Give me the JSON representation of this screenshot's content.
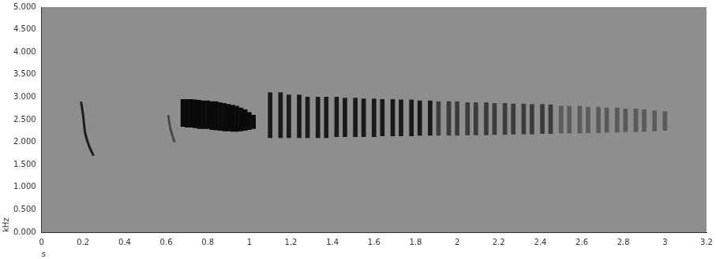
{
  "chart_data": {
    "type": "spectrogram",
    "x_label": "s",
    "y_label": "kHz",
    "xlim": [
      0,
      3.2
    ],
    "xticks": [
      0,
      0.2,
      0.4,
      0.6,
      0.8,
      1,
      1.2,
      1.4,
      1.6,
      1.8,
      2,
      2.2,
      2.4,
      2.6,
      2.8,
      3,
      3.2
    ],
    "ylim": [
      0,
      5
    ],
    "yticks": [
      {
        "value": 0,
        "label": "0.000"
      },
      {
        "value": 0.5,
        "label": "0.500"
      },
      {
        "value": 1,
        "label": "1.000"
      },
      {
        "value": 1.5,
        "label": "1.500"
      },
      {
        "value": 2,
        "label": "2.000"
      },
      {
        "value": 2.5,
        "label": "2.500"
      },
      {
        "value": 3,
        "label": "3.000"
      },
      {
        "value": 3.5,
        "label": "3.500"
      },
      {
        "value": 4,
        "label": "4.000"
      },
      {
        "value": 4.5,
        "label": "4.500"
      },
      {
        "value": 5,
        "label": "5.000"
      }
    ],
    "grid": false,
    "series": [
      {
        "type": "line",
        "color": "#1e1e1e",
        "x": [
          0.19,
          0.2,
          0.21,
          0.23,
          0.25
        ],
        "values": [
          2.9,
          2.6,
          2.2,
          1.9,
          1.7
        ]
      },
      {
        "type": "line",
        "color": "#4a4a4a",
        "x": [
          0.61,
          0.62,
          0.64
        ],
        "values": [
          2.6,
          2.3,
          2.0
        ]
      },
      {
        "type": "bar",
        "color": "#0a0a0a",
        "x": [
          0.68,
          0.7,
          0.72,
          0.74,
          0.76,
          0.78,
          0.8,
          0.82,
          0.84,
          0.86,
          0.88,
          0.9,
          0.92,
          0.94,
          0.96,
          0.98,
          1,
          1.02
        ],
        "values": [
          [
            2.35,
            2.95
          ],
          [
            2.33,
            2.95
          ],
          [
            2.33,
            2.95
          ],
          [
            2.32,
            2.94
          ],
          [
            2.3,
            2.93
          ],
          [
            2.3,
            2.92
          ],
          [
            2.3,
            2.92
          ],
          [
            2.28,
            2.9
          ],
          [
            2.27,
            2.9
          ],
          [
            2.26,
            2.88
          ],
          [
            2.25,
            2.86
          ],
          [
            2.25,
            2.84
          ],
          [
            2.24,
            2.82
          ],
          [
            2.24,
            2.8
          ],
          [
            2.25,
            2.76
          ],
          [
            2.26,
            2.72
          ],
          [
            2.28,
            2.66
          ],
          [
            2.3,
            2.6
          ]
        ]
      },
      {
        "type": "bar",
        "color": "#1a1a1a",
        "x": [
          1.1,
          1.15,
          1.19,
          1.24,
          1.28,
          1.33,
          1.37,
          1.42,
          1.46,
          1.51,
          1.55,
          1.6,
          1.64,
          1.69,
          1.73,
          1.78,
          1.82,
          1.87
        ],
        "values": [
          [
            2.1,
            3.1
          ],
          [
            2.1,
            3.1
          ],
          [
            2.1,
            3.05
          ],
          [
            2.1,
            3.05
          ],
          [
            2.1,
            3.0
          ],
          [
            2.1,
            3.0
          ],
          [
            2.1,
            3.0
          ],
          [
            2.12,
            3.0
          ],
          [
            2.12,
            2.98
          ],
          [
            2.12,
            2.98
          ],
          [
            2.12,
            2.96
          ],
          [
            2.12,
            2.96
          ],
          [
            2.14,
            2.95
          ],
          [
            2.14,
            2.95
          ],
          [
            2.14,
            2.94
          ],
          [
            2.14,
            2.94
          ],
          [
            2.15,
            2.92
          ],
          [
            2.15,
            2.92
          ]
        ]
      },
      {
        "type": "bar",
        "color": "#3c3c3c",
        "x": [
          1.91,
          1.96,
          2,
          2.05,
          2.09,
          2.14,
          2.18,
          2.23,
          2.27,
          2.32,
          2.36,
          2.41,
          2.45
        ],
        "values": [
          [
            2.15,
            2.9
          ],
          [
            2.15,
            2.9
          ],
          [
            2.15,
            2.9
          ],
          [
            2.16,
            2.88
          ],
          [
            2.16,
            2.88
          ],
          [
            2.16,
            2.88
          ],
          [
            2.17,
            2.86
          ],
          [
            2.17,
            2.86
          ],
          [
            2.18,
            2.85
          ],
          [
            2.18,
            2.85
          ],
          [
            2.18,
            2.84
          ],
          [
            2.19,
            2.84
          ],
          [
            2.19,
            2.83
          ]
        ]
      },
      {
        "type": "bar",
        "color": "#5a5a5a",
        "x": [
          2.5,
          2.54,
          2.59,
          2.63,
          2.68,
          2.72,
          2.77,
          2.81,
          2.86,
          2.9,
          2.95,
          3
        ],
        "values": [
          [
            2.2,
            2.8
          ],
          [
            2.2,
            2.8
          ],
          [
            2.2,
            2.8
          ],
          [
            2.21,
            2.78
          ],
          [
            2.21,
            2.78
          ],
          [
            2.22,
            2.76
          ],
          [
            2.22,
            2.76
          ],
          [
            2.23,
            2.74
          ],
          [
            2.23,
            2.74
          ],
          [
            2.24,
            2.72
          ],
          [
            2.25,
            2.7
          ],
          [
            2.26,
            2.68
          ]
        ]
      }
    ]
  }
}
